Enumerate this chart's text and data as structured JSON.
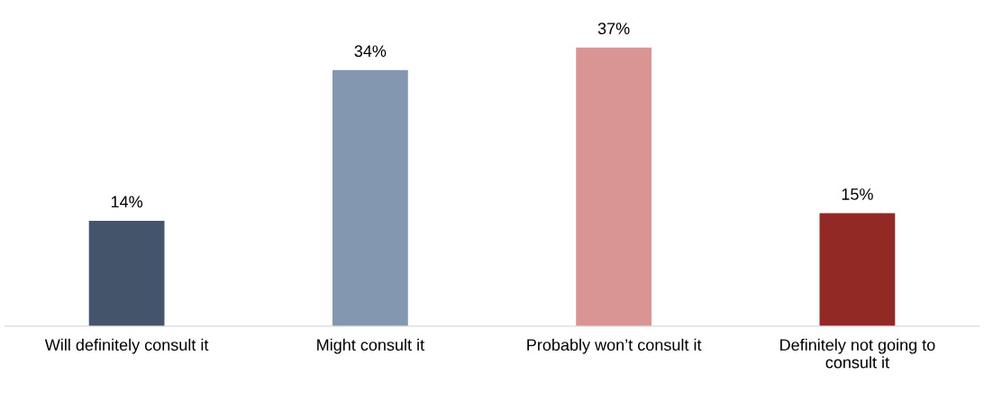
{
  "chart_data": {
    "type": "bar",
    "categories": [
      "Will definitely consult it",
      "Might consult it",
      "Probably won’t consult it",
      "Definitely not going to\nconsult it"
    ],
    "values": [
      14,
      34,
      37,
      15
    ],
    "colors": [
      "#44546a",
      "#8497b0",
      "#d99594",
      "#922925"
    ],
    "value_labels": [
      "14%",
      "34%",
      "37%",
      "15%"
    ],
    "grid": false,
    "legend": false
  }
}
